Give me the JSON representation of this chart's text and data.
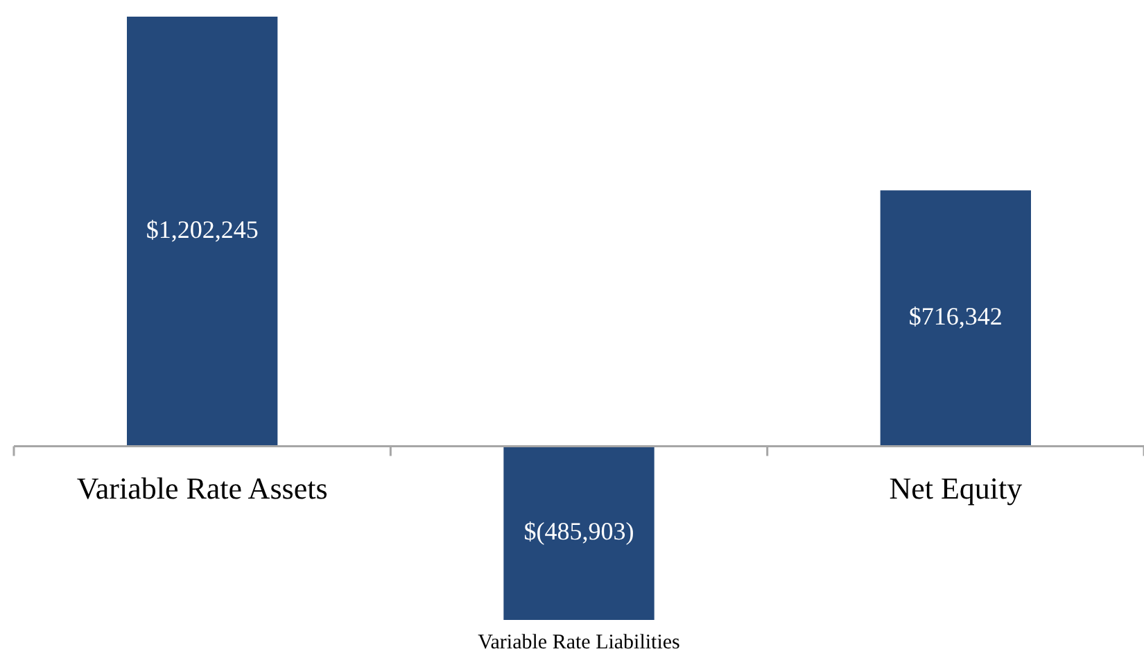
{
  "chart_data": {
    "type": "bar",
    "categories": [
      "Variable Rate Assets",
      "Variable Rate Liabilities",
      "Net Equity"
    ],
    "values": [
      1202245,
      -485903,
      716342
    ],
    "value_labels": [
      "$1,202,245",
      "$(485,903)",
      "$716,342"
    ],
    "color": "#24497b",
    "legend": false
  }
}
